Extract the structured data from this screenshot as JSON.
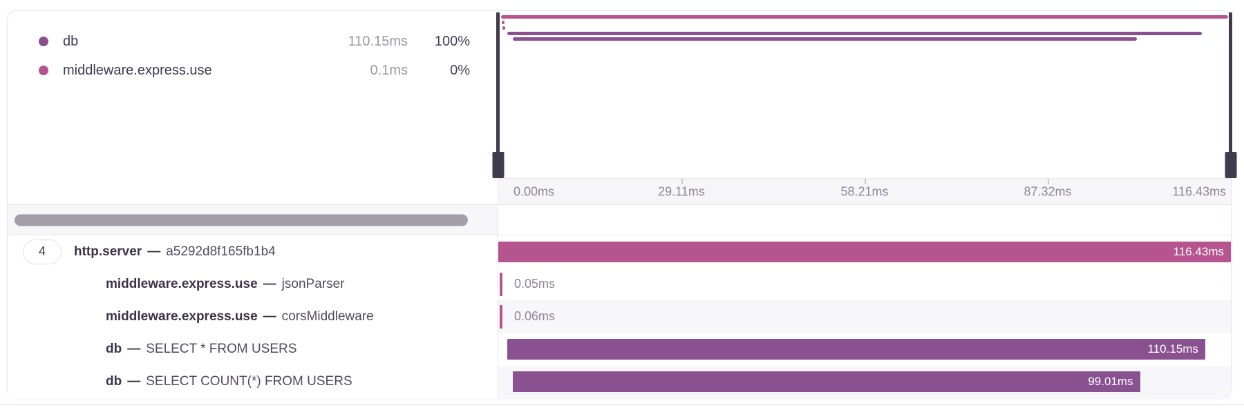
{
  "colors": {
    "pink": "#b5548e",
    "purple": "#8a5190",
    "handle": "#423b4e",
    "thumb": "#a29fa9"
  },
  "legend": {
    "rows": [
      {
        "name": "db",
        "duration": "110.15ms",
        "percent": "100%",
        "color_key": "purple"
      },
      {
        "name": "middleware.express.use",
        "duration": "0.1ms",
        "percent": "0%",
        "color_key": "pink"
      }
    ]
  },
  "minimap": {
    "lines": [
      {
        "name": "http.server",
        "color_key": "pink",
        "left_pct": 0.4,
        "width_pct": 99.2
      },
      {
        "name": "middleware.express.use jsonParser",
        "color_key": "pink",
        "left_pct": 0.5,
        "width_pct": 0.35
      },
      {
        "name": "middleware.express.use corsMiddleware",
        "color_key": "pink",
        "left_pct": 0.6,
        "width_pct": 0.35
      },
      {
        "name": "db SELECT * FROM USERS",
        "color_key": "purple",
        "left_pct": 1.2,
        "width_pct": 94.8
      },
      {
        "name": "db SELECT COUNT(*) FROM USERS",
        "color_key": "purple",
        "left_pct": 2.0,
        "width_pct": 85.2
      }
    ]
  },
  "axis": {
    "labels": [
      "0.00ms",
      "29.11ms",
      "58.21ms",
      "87.32ms",
      "116.43ms"
    ]
  },
  "trace": {
    "badge_count": "4",
    "rows": [
      {
        "name": "http.server",
        "sep": "—",
        "detail": "a5292d8f165fb1b4",
        "duration": "116.43ms",
        "color_key": "pink",
        "bar": {
          "left_pct": 0,
          "width_pct": 100
        }
      },
      {
        "name": "middleware.express.use",
        "sep": "—",
        "detail": "jsonParser",
        "duration": "0.05ms",
        "color_key": "pink",
        "bar": {
          "left_pct": 0.05,
          "width_pct": 0.3
        }
      },
      {
        "name": "middleware.express.use",
        "sep": "—",
        "detail": "corsMiddleware",
        "duration": "0.06ms",
        "color_key": "pink",
        "bar": {
          "left_pct": 0.1,
          "width_pct": 0.3
        }
      },
      {
        "name": "db",
        "sep": "—",
        "detail": "SELECT * FROM USERS",
        "duration": "110.15ms",
        "color_key": "purple",
        "bar": {
          "left_pct": 1.2,
          "width_pct": 95.3
        }
      },
      {
        "name": "db",
        "sep": "—",
        "detail": "SELECT COUNT(*) FROM USERS",
        "duration": "99.01ms",
        "color_key": "purple",
        "bar": {
          "left_pct": 2.0,
          "width_pct": 85.6
        }
      }
    ]
  }
}
